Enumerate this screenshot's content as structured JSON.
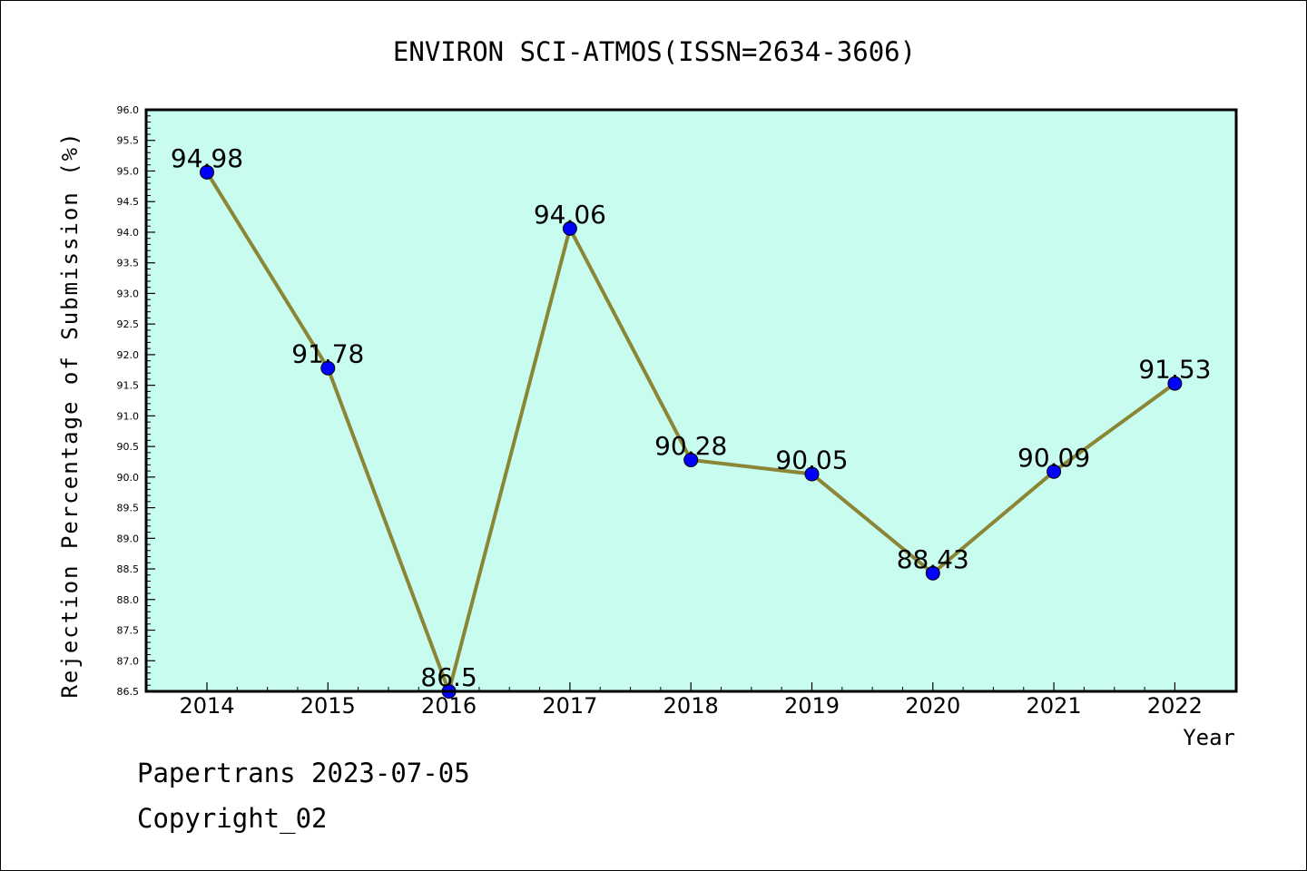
{
  "chart_data": {
    "type": "line",
    "title": "ENVIRON SCI-ATMOS(ISSN=2634-3606)",
    "xlabel": "Year",
    "ylabel": "Rejection Percentage of Submission (%)",
    "categories": [
      "2014",
      "2015",
      "2016",
      "2017",
      "2018",
      "2019",
      "2020",
      "2021",
      "2022"
    ],
    "series": [
      {
        "values": [
          94.98,
          91.78,
          86.5,
          94.06,
          90.28,
          90.05,
          88.43,
          90.09,
          91.53
        ],
        "labels": [
          "94.98",
          "91.78",
          "86.5",
          "94.06",
          "90.28",
          "90.05",
          "88.43",
          "90.09",
          "91.53"
        ]
      }
    ],
    "ylim": [
      86.5,
      96.0
    ],
    "yticks": [
      "86.5",
      "87.0",
      "87.5",
      "88.0",
      "88.5",
      "89.0",
      "89.5",
      "90.0",
      "90.5",
      "91.0",
      "91.5",
      "92.0",
      "92.5",
      "93.0",
      "93.5",
      "94.0",
      "94.5",
      "95.0",
      "95.5",
      "96.0"
    ],
    "grid": false,
    "colors": {
      "plot_background": "#c8fcee",
      "line": "#8b8636",
      "marker": "#0000ff"
    }
  },
  "footer": {
    "line1": "Papertrans 2023-07-05",
    "line2": "Copyright_02"
  }
}
